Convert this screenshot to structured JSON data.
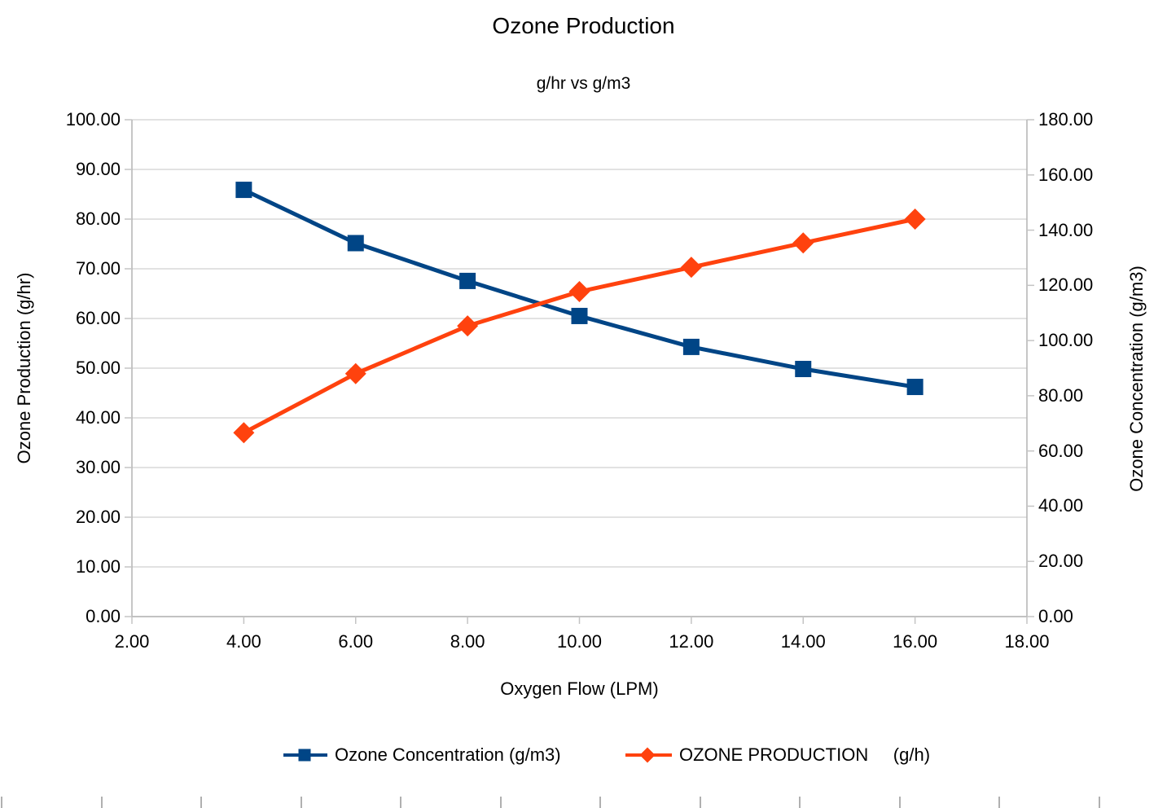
{
  "chart": {
    "title": "Ozone Production",
    "subtitle": "g/hr vs g/m3",
    "x_axis": {
      "title": "Oxygen Flow (LPM)",
      "tick_labels": [
        "2.00",
        "4.00",
        "6.00",
        "8.00",
        "10.00",
        "12.00",
        "14.00",
        "16.00",
        "18.00"
      ]
    },
    "y_left": {
      "title": "Ozone Production (g/hr)",
      "tick_labels": [
        "0.00",
        "10.00",
        "20.00",
        "30.00",
        "40.00",
        "50.00",
        "60.00",
        "70.00",
        "80.00",
        "90.00",
        "100.00"
      ]
    },
    "y_right": {
      "title": "Ozone Concentration (g/m3)",
      "tick_labels": [
        "0.00",
        "20.00",
        "40.00",
        "60.00",
        "80.00",
        "100.00",
        "120.00",
        "140.00",
        "160.00",
        "180.00"
      ]
    },
    "legend": {
      "position": "bottom",
      "entries": [
        {
          "label": "Ozone Concentration (g/m3)",
          "marker": "square",
          "color": "#004586"
        },
        {
          "label": "OZONE PRODUCTION     (g/h)",
          "marker": "diamond",
          "color": "#FF420E"
        }
      ]
    }
  },
  "chart_data": {
    "type": "line",
    "title": "Ozone Production",
    "subtitle": "g/hr vs g/m3",
    "xlabel": "Oxygen Flow (LPM)",
    "x": [
      4,
      6,
      8,
      10,
      12,
      14,
      16
    ],
    "x_range": [
      2,
      18
    ],
    "x_tick_step": 2,
    "grid": "horizontal",
    "legend_position": "bottom",
    "y_left": {
      "label": "Ozone Production (g/hr)",
      "range": [
        0,
        100
      ],
      "tick_step": 10
    },
    "y_right": {
      "label": "Ozone Concentration (g/m3)",
      "range": [
        0,
        180
      ],
      "tick_step": 20
    },
    "series": [
      {
        "name": "Ozone Concentration (g/m3)",
        "axis": "right",
        "color": "#004586",
        "marker": "square",
        "values": [
          154.6,
          135.3,
          121.6,
          108.9,
          97.7,
          89.7,
          83.2
        ]
      },
      {
        "name": "OZONE PRODUCTION (g/h)",
        "axis": "left",
        "color": "#FF420E",
        "marker": "diamond",
        "values": [
          37.0,
          48.9,
          58.5,
          65.4,
          70.3,
          75.2,
          80.0
        ]
      }
    ]
  },
  "colors": {
    "series_blue": "#004586",
    "series_orange": "#FF420E",
    "gridline": "#d9d9d9",
    "axis_line": "#b3b3b3",
    "axis_tick": "#c4c4c4",
    "ruler_tick": "#b0b0b0",
    "background": "#ffffff",
    "text": "#000000"
  },
  "ruler": {
    "tick_count": 12
  }
}
